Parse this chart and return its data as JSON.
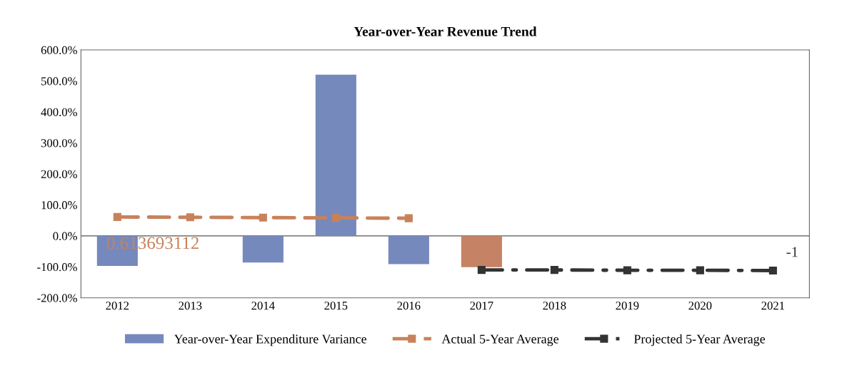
{
  "chart_data": {
    "type": "bar",
    "title": "Year-over-Year Revenue Trend",
    "categories": [
      "2012",
      "2013",
      "2014",
      "2015",
      "2016",
      "2017",
      "2018",
      "2019",
      "2020",
      "2021"
    ],
    "series": [
      {
        "name": "Year-over-Year Expenditure Variance",
        "colors": [
          "#7689bd",
          "#7689bd",
          "#7689bd",
          "#7689bd",
          "#7689bd",
          "#c58264",
          "#7689bd",
          "#7689bd",
          "#7689bd",
          "#7689bd"
        ],
        "color": "#7689bd",
        "values": [
          -97,
          null,
          -86,
          520,
          -91,
          -101,
          null,
          null,
          null,
          null
        ]
      },
      {
        "name": "Actual 5-Year Average",
        "type": "line",
        "color": "#c8825a",
        "line_style": "dashed",
        "marker": "square",
        "values": [
          61,
          60,
          59,
          58,
          57,
          null,
          null,
          null,
          null,
          null
        ]
      },
      {
        "name": "Projected 5-Year Average",
        "type": "line",
        "color": "#333333",
        "line_style": "dashdot",
        "marker": "square",
        "values": [
          null,
          null,
          null,
          null,
          null,
          -110,
          -110,
          -111,
          -111,
          -112
        ]
      }
    ],
    "annotations": [
      "0.613693112",
      "-1"
    ],
    "ylim": [
      -200,
      600
    ],
    "yticks": [
      {
        "value": -200,
        "label": "-200.0%"
      },
      {
        "value": -100,
        "label": "-100.0%"
      },
      {
        "value": 0,
        "label": "0.0%"
      },
      {
        "value": 100,
        "label": "100.0%"
      },
      {
        "value": 200,
        "label": "200.0%"
      },
      {
        "value": 300,
        "label": "300.0%"
      },
      {
        "value": 400,
        "label": "400.0%"
      },
      {
        "value": 500,
        "label": "500.0%"
      },
      {
        "value": 600,
        "label": "600.0%"
      }
    ],
    "ref_lines": [
      {
        "axis": "y",
        "value": 0,
        "color": "#555555"
      }
    ],
    "grid": false,
    "legend": "bottom"
  }
}
